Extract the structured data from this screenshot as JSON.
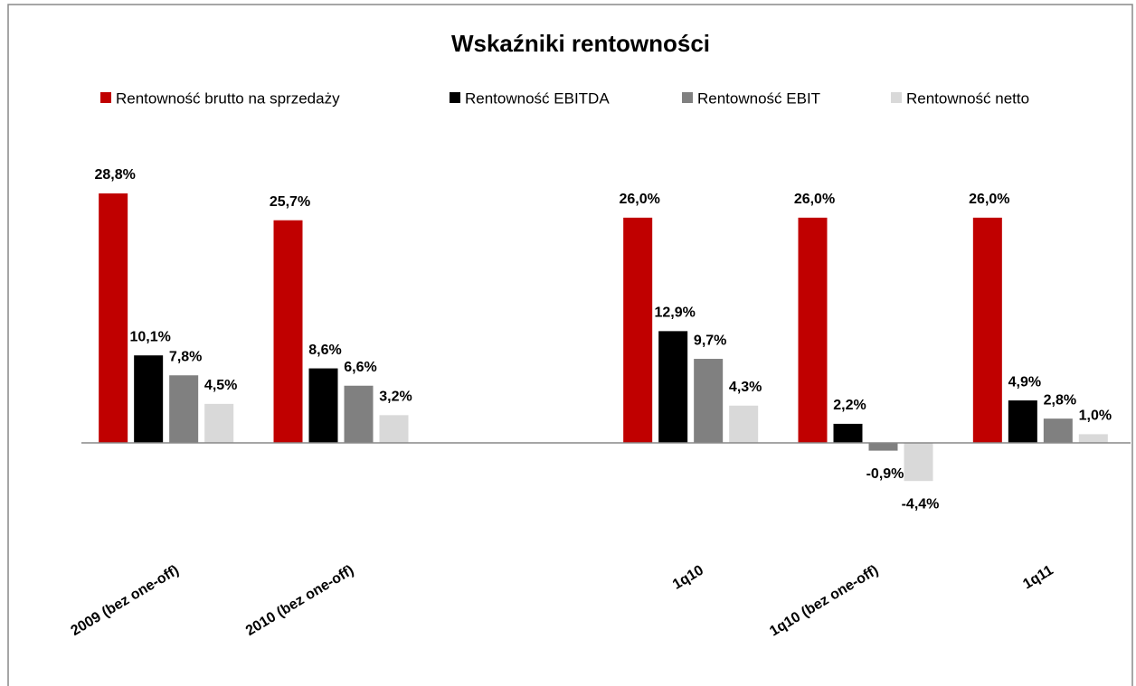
{
  "chart_data": {
    "type": "bar",
    "title": "Wskaźniki rentowności",
    "categories": [
      "2009 (bez one-off)",
      "2010 (bez one-off)",
      null,
      "1q10",
      "1q10 (bez one-off)",
      "1q11"
    ],
    "series": [
      {
        "name": "Rentowność brutto na sprzedaży",
        "color": "#c00000",
        "values": [
          28.8,
          25.7,
          null,
          26.0,
          26.0,
          26.0
        ],
        "value_labels": [
          "28,8%",
          "25,7%",
          null,
          "26,0%",
          "26,0%",
          "26,0%"
        ]
      },
      {
        "name": "Rentowność EBITDA",
        "color": "#000000",
        "values": [
          10.1,
          8.6,
          null,
          12.9,
          2.2,
          4.9
        ],
        "value_labels": [
          "10,1%",
          "8,6%",
          null,
          "12,9%",
          "2,2%",
          "4,9%"
        ]
      },
      {
        "name": "Rentowność EBIT",
        "color": "#808080",
        "values": [
          7.8,
          6.6,
          null,
          9.7,
          -0.9,
          2.8
        ],
        "value_labels": [
          "7,8%",
          "6,6%",
          null,
          "9,7%",
          "-0,9%",
          "2,8%"
        ]
      },
      {
        "name": "Rentowność netto",
        "color": "#d9d9d9",
        "values": [
          4.5,
          3.2,
          null,
          4.3,
          -4.4,
          1.0
        ],
        "value_labels": [
          "4,5%",
          "3,2%",
          null,
          "4,3%",
          "-4,4%",
          "1,0%"
        ]
      }
    ],
    "legend": "top"
  }
}
